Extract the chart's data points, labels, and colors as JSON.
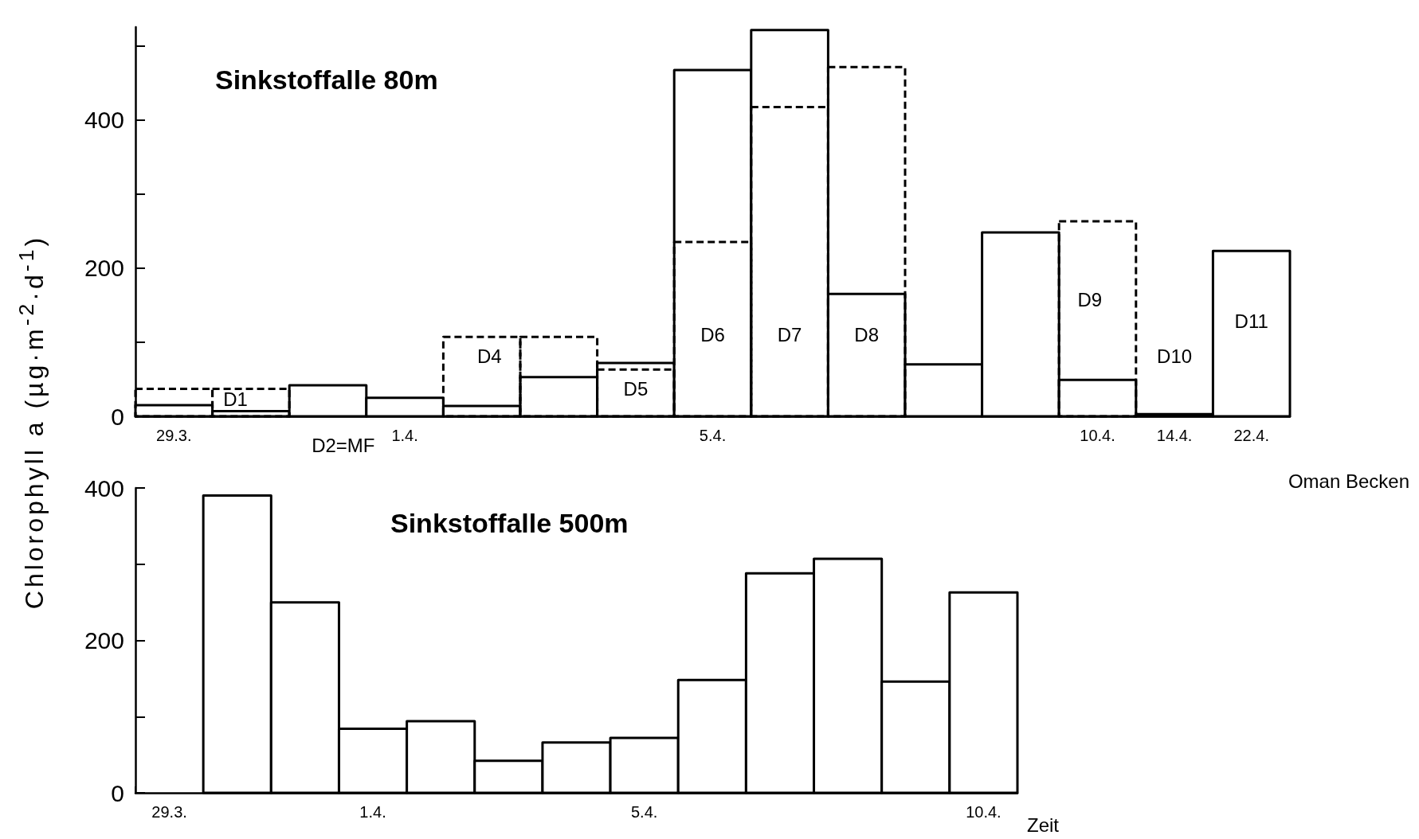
{
  "chart_data": [
    {
      "type": "bar",
      "title": "Sinkstoffalle 80m",
      "ylabel": "Chlorophyll a (µg·m$^{-2}$·d$^{-1}$)",
      "categories": [
        "29.3.",
        null,
        null,
        "1.4.",
        null,
        null,
        null,
        "5.4.",
        null,
        null,
        null,
        null,
        "10.4.",
        "14.4.",
        "22.4."
      ],
      "series": [
        {
          "color": "#000000",
          "line_style": "solid",
          "values": [
            15,
            7,
            42,
            25,
            14,
            53,
            72,
            467,
            521,
            165,
            70,
            248,
            49,
            3,
            223
          ]
        },
        {
          "color": "#000000",
          "line_style": "dashed",
          "values": [
            37,
            37,
            null,
            null,
            107,
            107,
            63,
            235,
            417,
            471,
            null,
            null,
            263,
            null,
            null
          ]
        }
      ],
      "ylim": [
        0,
        525
      ],
      "yticks": [
        0,
        {
          "value": 100,
          "label": null
        },
        200,
        {
          "value": 300,
          "label": null
        },
        400,
        {
          "value": 500,
          "label": null
        }
      ],
      "annotations": [
        "D1",
        "D2=MF",
        "D4",
        "D5",
        "D6",
        "D7",
        "D8",
        "D9",
        "D10",
        "D11"
      ],
      "grid": false
    },
    {
      "type": "bar",
      "title": "Sinkstoffalle 500m",
      "xlabel": "Zeit",
      "categories": [
        "29.3.",
        null,
        null,
        "1.4.",
        null,
        null,
        null,
        "5.4.",
        null,
        null,
        null,
        null,
        "10.4."
      ],
      "series": [
        {
          "color": "#000000",
          "line_style": "solid",
          "values": [
            null,
            390,
            250,
            84,
            94,
            42,
            66,
            72,
            148,
            288,
            307,
            146,
            263
          ]
        }
      ],
      "ylim": [
        0,
        400
      ],
      "yticks": [
        0,
        {
          "value": 100,
          "label": null
        },
        200,
        {
          "value": 300,
          "label": null
        },
        400
      ],
      "annotations": [
        "Oman Becken"
      ],
      "grid": false
    }
  ]
}
